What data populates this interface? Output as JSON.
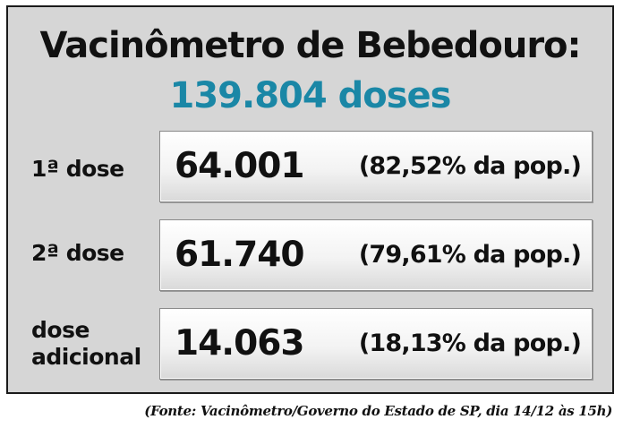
{
  "title": "Vacinômetro de Bebedouro:",
  "total": "139.804 doses",
  "rows": [
    {
      "label_line1": "1ª dose",
      "label_line2": "",
      "value": "64.001",
      "percent": "(82,52% da pop.)"
    },
    {
      "label_line1": "2ª dose",
      "label_line2": "",
      "value": "61.740",
      "percent": "(79,61% da pop.)"
    },
    {
      "label_line1": "dose",
      "label_line2": "adicional",
      "value": "14.063",
      "percent": "(18,13% da pop.)"
    }
  ],
  "source": "(Fonte: Vacinômetro/Governo do Estado de SP, dia 14/12 às 15h)",
  "colors": {
    "total": "#1a87a6",
    "panel": "#d6d6d6",
    "text": "#111111"
  }
}
